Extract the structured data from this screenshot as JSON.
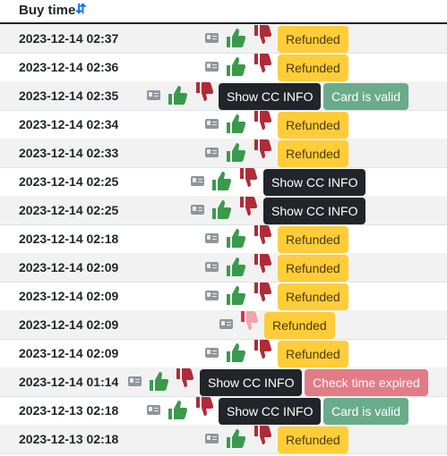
{
  "header": {
    "title": "Buy time",
    "sort_icon": "sort-icon"
  },
  "colors": {
    "thumb_up": "#3a9a4c",
    "thumb_down": "#b02a37",
    "refunded_bg": "#ffcd39",
    "dark_btn_bg": "#212529",
    "valid_bg": "#6aac8a",
    "expired_bg": "#e27c86"
  },
  "labels": {
    "refunded": "Refunded",
    "show_cc": "Show CC INFO",
    "card_valid": "Card is valid",
    "check_expired": "Check time expired"
  },
  "rows": [
    {
      "time": "2023-12-14 02:37",
      "variant": "refunded",
      "status": "Refunded"
    },
    {
      "time": "2023-12-14 02:36",
      "variant": "refunded",
      "status": "Refunded"
    },
    {
      "time": "2023-12-14 02:35",
      "variant": "cc-valid",
      "status": "Card is valid"
    },
    {
      "time": "2023-12-14 02:34",
      "variant": "refunded",
      "status": "Refunded"
    },
    {
      "time": "2023-12-14 02:33",
      "variant": "refunded",
      "status": "Refunded"
    },
    {
      "time": "2023-12-14 02:25",
      "variant": "cc-only",
      "status": ""
    },
    {
      "time": "2023-12-14 02:25",
      "variant": "cc-only",
      "status": ""
    },
    {
      "time": "2023-12-14 02:18",
      "variant": "refunded",
      "status": "Refunded"
    },
    {
      "time": "2023-12-14 02:09",
      "variant": "refunded",
      "status": "Refunded"
    },
    {
      "time": "2023-12-14 02:09",
      "variant": "refunded",
      "status": "Refunded"
    },
    {
      "time": "2023-12-14 02:09",
      "variant": "refunded-flagged",
      "status": "Refunded"
    },
    {
      "time": "2023-12-14 02:09",
      "variant": "refunded",
      "status": "Refunded"
    },
    {
      "time": "2023-12-14 01:14",
      "variant": "cc-expired",
      "status": "Check time expired"
    },
    {
      "time": "2023-12-13 02:18",
      "variant": "cc-valid",
      "status": "Card is valid"
    },
    {
      "time": "2023-12-13 02:18",
      "variant": "refunded",
      "status": "Refunded"
    }
  ]
}
